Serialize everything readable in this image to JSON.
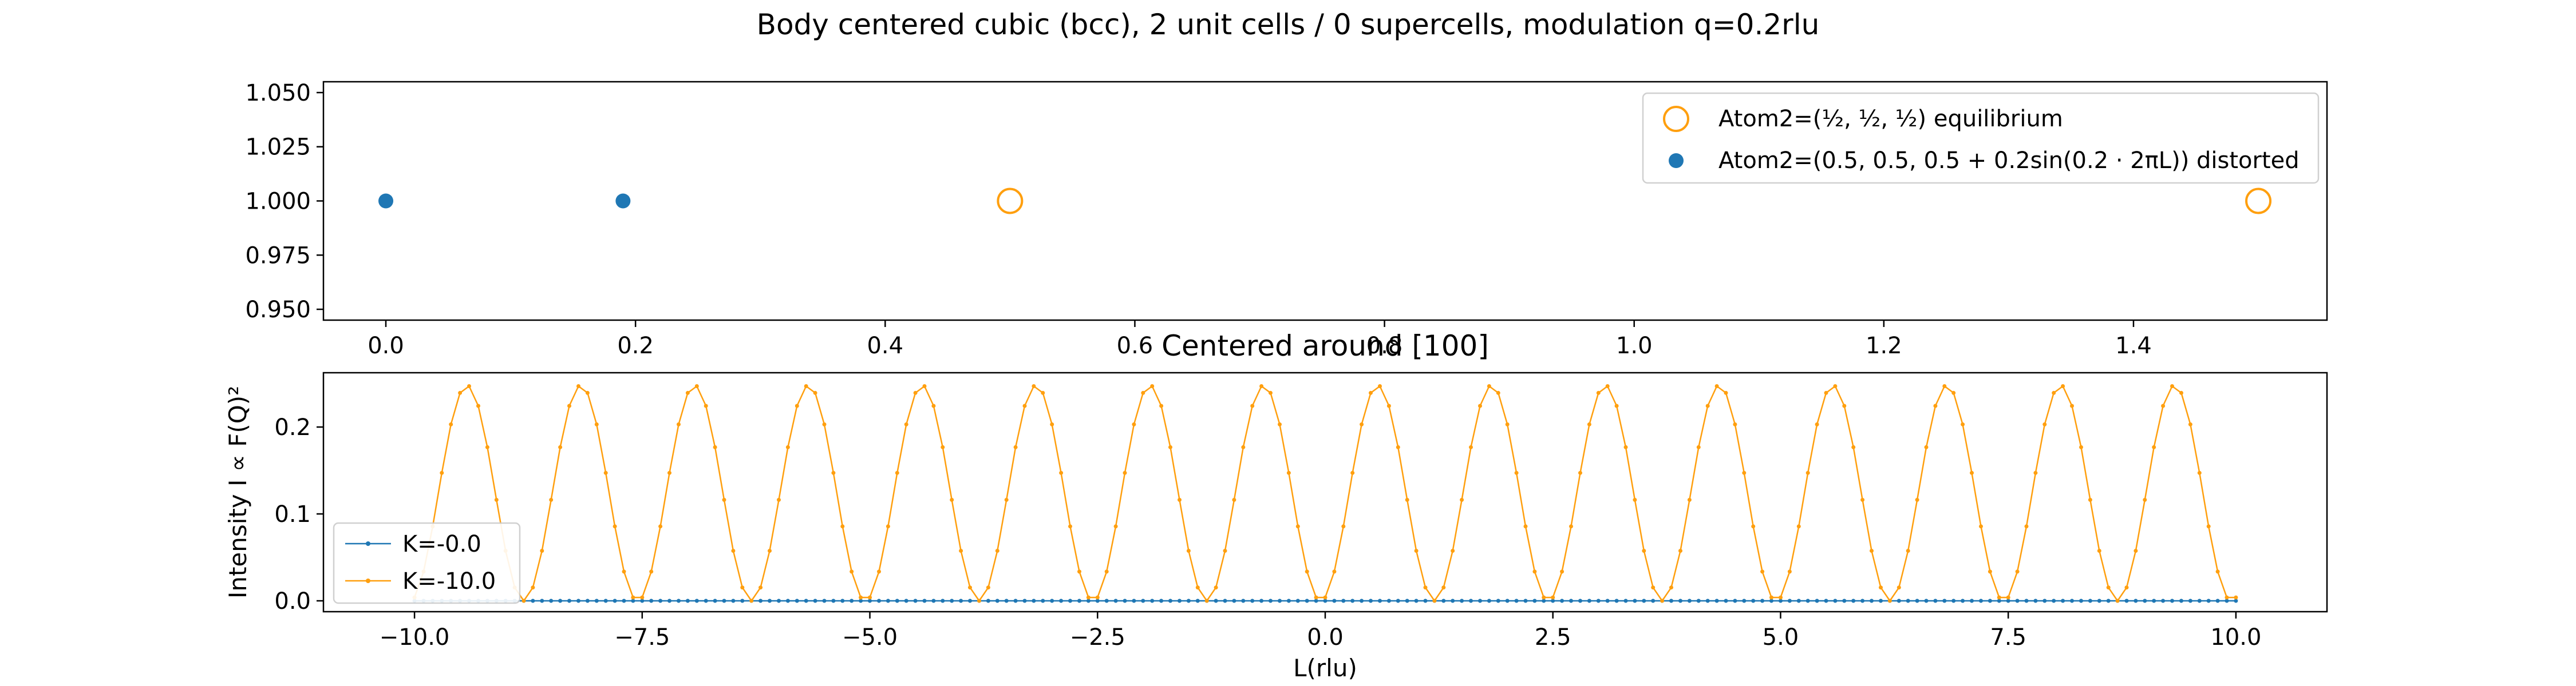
{
  "figure_title": "Body centered cubic (bcc), 2 unit cells / 0 supercells, modulation q=0.2rlu",
  "colors": {
    "blue": "#1f77b4",
    "orange": "#ff9f0e",
    "axis": "#000000"
  },
  "chart_data": [
    {
      "type": "scatter",
      "title": "",
      "xlabel": "",
      "ylabel": "",
      "xlim": [
        -0.05,
        1.555
      ],
      "ylim": [
        0.945,
        1.055
      ],
      "xticks": [
        0.0,
        0.2,
        0.4,
        0.6,
        0.8,
        1.0,
        1.2,
        1.4
      ],
      "xtick_labels": [
        "0.0",
        "0.2",
        "0.4",
        "0.6",
        "0.8",
        "1.0",
        "1.2",
        "1.4"
      ],
      "yticks": [
        0.95,
        0.975,
        1.0,
        1.025,
        1.05
      ],
      "ytick_labels": [
        "0.950",
        "0.975",
        "1.000",
        "1.025",
        "1.050"
      ],
      "legend_position": "upper right",
      "series": [
        {
          "name": "Atom2=(½, ½, ½) equilibrium",
          "marker": "open-circle",
          "color": "#ff9f0e",
          "x": [
            0.5,
            1.5
          ],
          "y": [
            1.0,
            1.0
          ]
        },
        {
          "name": "Atom2=(0.5, 0.5, 0.5 + 0.2sin(0.2 · 2πL)) distorted",
          "marker": "filled-circle",
          "color": "#1f77b4",
          "x": [
            0.0,
            0.19
          ],
          "y": [
            1.0,
            1.0
          ]
        }
      ]
    },
    {
      "type": "line",
      "title": "Centered around [100]",
      "xlabel": "L(rlu)",
      "ylabel": "Intensity I ∝ F(Q)²",
      "xlim": [
        -11.0,
        11.0
      ],
      "ylim": [
        -0.0125,
        0.2625
      ],
      "xticks": [
        -10.0,
        -7.5,
        -5.0,
        -2.5,
        0.0,
        2.5,
        5.0,
        7.5,
        10.0
      ],
      "xtick_labels": [
        "−10.0",
        "−7.5",
        "−5.0",
        "−2.5",
        "0.0",
        "2.5",
        "5.0",
        "7.5",
        "10.0"
      ],
      "yticks": [
        0.0,
        0.1,
        0.2
      ],
      "ytick_labels": [
        "0.0",
        "0.1",
        "0.2"
      ],
      "legend_position": "lower left",
      "series": [
        {
          "name": "K=-0.0",
          "color": "#1f77b4",
          "marker": "dot",
          "model": {
            "form": "a*sin(2*pi*(x - phase)/period)^2",
            "x_start": -10.0,
            "x_stop": 10.0,
            "samples": 201,
            "amplitude": 0.0,
            "period": 2.5,
            "phase": 0.0
          }
        },
        {
          "name": "K=-10.0",
          "color": "#ff9f0e",
          "marker": "dot",
          "model": {
            "form": "a*sin(2*pi*(x - phase)/period)^2",
            "x_start": -10.0,
            "x_stop": 10.0,
            "samples": 201,
            "amplitude": 0.248,
            "period": 2.5,
            "phase": -0.05
          }
        }
      ]
    }
  ]
}
